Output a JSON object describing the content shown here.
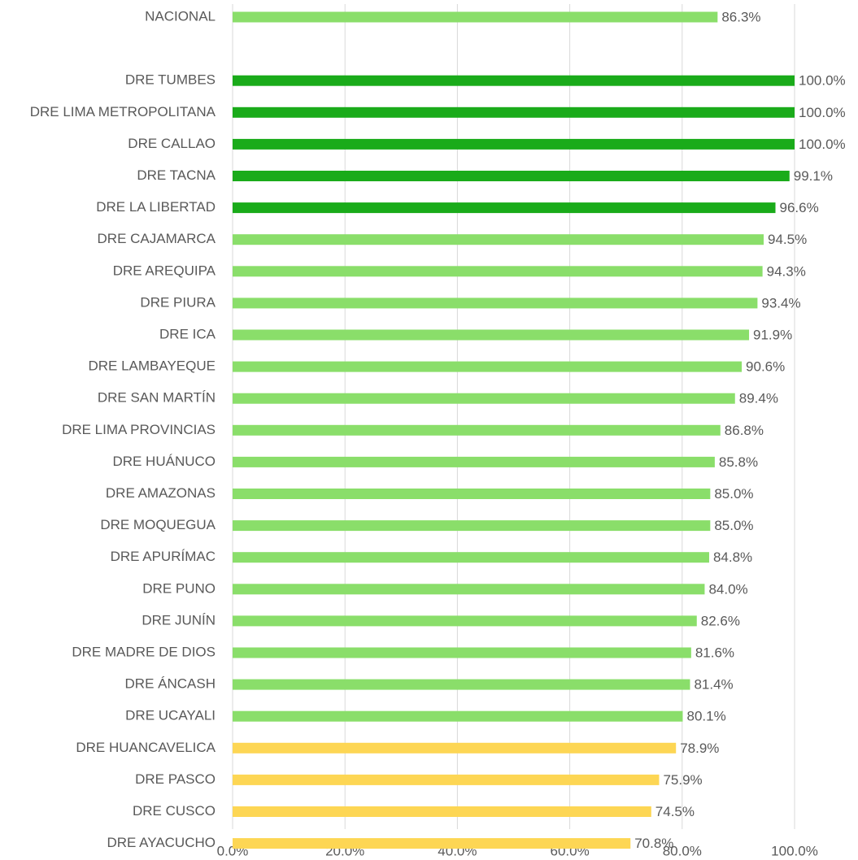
{
  "chart_data": {
    "type": "bar",
    "orientation": "horizontal",
    "categories": [
      "NACIONAL",
      null,
      "DRE TUMBES",
      "DRE LIMA METROPOLITANA",
      "DRE CALLAO",
      "DRE TACNA",
      "DRE LA LIBERTAD",
      "DRE CAJAMARCA",
      "DRE AREQUIPA",
      "DRE PIURA",
      "DRE ICA",
      "DRE LAMBAYEQUE",
      "DRE SAN MARTÍN",
      "DRE LIMA PROVINCIAS",
      "DRE HUÁNUCO",
      "DRE AMAZONAS",
      "DRE MOQUEGUA",
      "DRE APURÍMAC",
      "DRE PUNO",
      "DRE JUNÍN",
      "DRE MADRE DE DIOS",
      "DRE ÁNCASH",
      "DRE UCAYALI",
      "DRE HUANCAVELICA",
      "DRE PASCO",
      "DRE CUSCO",
      "DRE AYACUCHO"
    ],
    "values": [
      86.3,
      null,
      100.0,
      100.0,
      100.0,
      99.1,
      96.6,
      94.5,
      94.3,
      93.4,
      91.9,
      90.6,
      89.4,
      86.8,
      85.8,
      85.0,
      85.0,
      84.8,
      84.0,
      82.6,
      81.6,
      81.4,
      80.1,
      78.9,
      75.9,
      74.5,
      70.8
    ],
    "value_labels": [
      "86.3%",
      null,
      "100.0%",
      "100.0%",
      "100.0%",
      "99.1%",
      "96.6%",
      "94.5%",
      "94.3%",
      "93.4%",
      "91.9%",
      "90.6%",
      "89.4%",
      "86.8%",
      "85.8%",
      "85.0%",
      "85.0%",
      "84.8%",
      "84.0%",
      "82.6%",
      "81.6%",
      "81.4%",
      "80.1%",
      "78.9%",
      "75.9%",
      "74.5%",
      "70.8%"
    ],
    "colors": [
      "#8ade6a",
      null,
      "#1aab1a",
      "#1aab1a",
      "#1aab1a",
      "#1aab1a",
      "#1aab1a",
      "#8ade6a",
      "#8ade6a",
      "#8ade6a",
      "#8ade6a",
      "#8ade6a",
      "#8ade6a",
      "#8ade6a",
      "#8ade6a",
      "#8ade6a",
      "#8ade6a",
      "#8ade6a",
      "#8ade6a",
      "#8ade6a",
      "#8ade6a",
      "#8ade6a",
      "#8ade6a",
      "#fdd654",
      "#fdd654",
      "#fdd654",
      "#fdd654"
    ],
    "xlim": [
      0,
      100
    ],
    "xticks": [
      {
        "value": 0,
        "label": "0.0%"
      },
      {
        "value": 20,
        "label": "20.0%"
      },
      {
        "value": 40,
        "label": "40.0%"
      },
      {
        "value": 60,
        "label": "60.0%"
      },
      {
        "value": 80,
        "label": "80.0%"
      },
      {
        "value": 100,
        "label": "100.0%"
      }
    ],
    "grid": true
  }
}
